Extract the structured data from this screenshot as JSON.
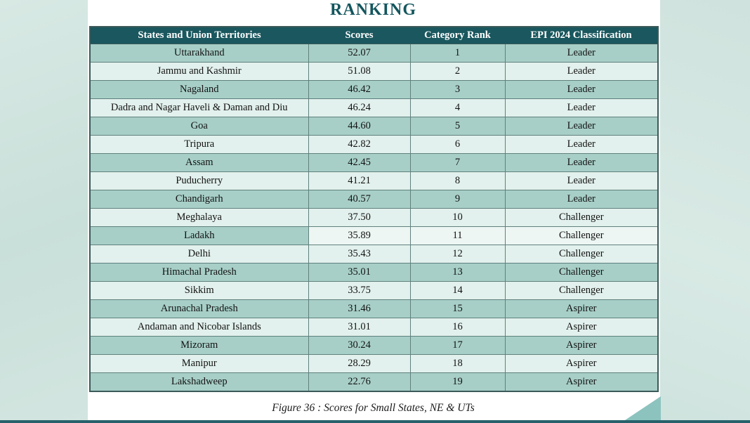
{
  "title": "RANKING",
  "caption": "Figure 36 : Scores for Small States, NE & UTs",
  "table": {
    "headers": [
      "States and Union Territories",
      "Scores",
      "Category Rank",
      "EPI 2024 Classification"
    ],
    "rows": [
      {
        "state": "Uttarakhand",
        "score": "52.07",
        "rank": "1",
        "classification": "Leader"
      },
      {
        "state": "Jammu and Kashmir",
        "score": "51.08",
        "rank": "2",
        "classification": "Leader"
      },
      {
        "state": "Nagaland",
        "score": "46.42",
        "rank": "3",
        "classification": "Leader"
      },
      {
        "state": "Dadra and Nagar Haveli & Daman and Diu",
        "score": "46.24",
        "rank": "4",
        "classification": "Leader"
      },
      {
        "state": "Goa",
        "score": "44.60",
        "rank": "5",
        "classification": "Leader"
      },
      {
        "state": "Tripura",
        "score": "42.82",
        "rank": "6",
        "classification": "Leader"
      },
      {
        "state": "Assam",
        "score": "42.45",
        "rank": "7",
        "classification": "Leader"
      },
      {
        "state": "Puducherry",
        "score": "41.21",
        "rank": "8",
        "classification": "Leader"
      },
      {
        "state": "Chandigarh",
        "score": "40.57",
        "rank": "9",
        "classification": "Leader"
      },
      {
        "state": "Meghalaya",
        "score": "37.50",
        "rank": "10",
        "classification": "Challenger"
      },
      {
        "state": "Ladakh",
        "score": "35.89",
        "rank": "11",
        "classification": "Challenger"
      },
      {
        "state": "Delhi",
        "score": "35.43",
        "rank": "12",
        "classification": "Challenger"
      },
      {
        "state": "Himachal Pradesh",
        "score": "35.01",
        "rank": "13",
        "classification": "Challenger"
      },
      {
        "state": "Sikkim",
        "score": "33.75",
        "rank": "14",
        "classification": "Challenger"
      },
      {
        "state": "Arunachal Pradesh",
        "score": "31.46",
        "rank": "15",
        "classification": "Aspirer"
      },
      {
        "state": "Andaman and Nicobar Islands",
        "score": "31.01",
        "rank": "16",
        "classification": "Aspirer"
      },
      {
        "state": "Mizoram",
        "score": "30.24",
        "rank": "17",
        "classification": "Aspirer"
      },
      {
        "state": "Manipur",
        "score": "28.29",
        "rank": "18",
        "classification": "Aspirer"
      },
      {
        "state": "Lakshadweep",
        "score": "22.76",
        "rank": "19",
        "classification": "Aspirer"
      }
    ]
  },
  "colors": {
    "header_bg": "#1a575e",
    "header_text": "#ffffff",
    "row_medium": "#a7cfc7",
    "row_light": "#e2f1ed",
    "title_text": "#14565e",
    "margin_strip": "#cfe2dd",
    "corner_triangle": "#8dc3be",
    "bottom_bar": "#27616b"
  }
}
